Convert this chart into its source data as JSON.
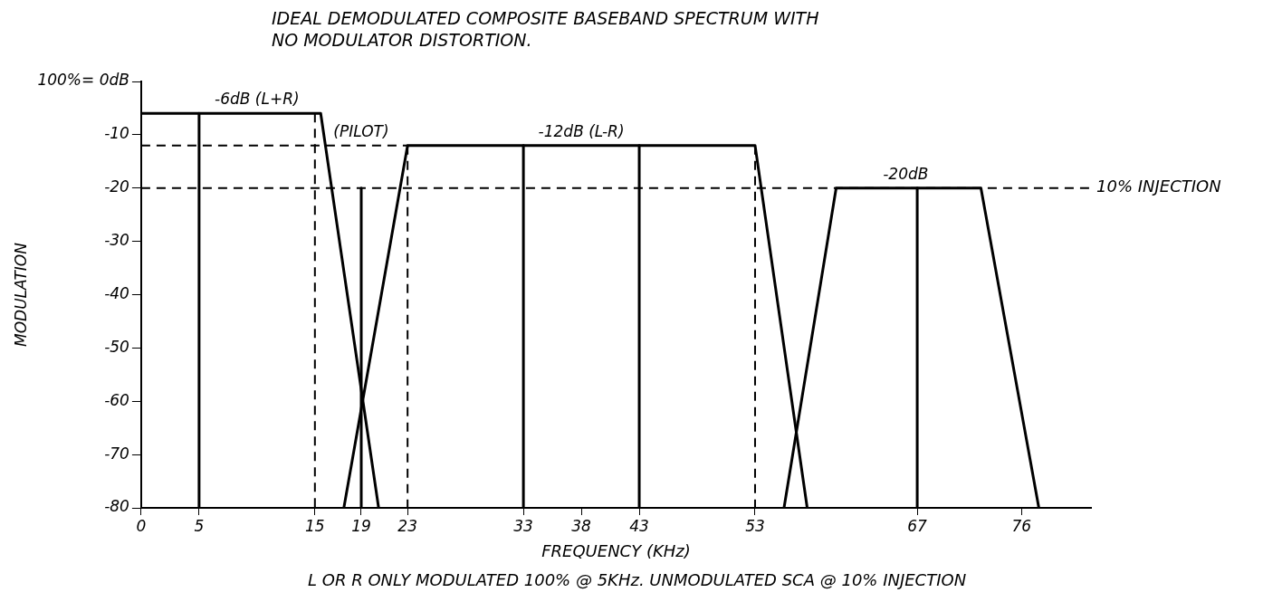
{
  "chart_data": {
    "type": "line",
    "title": "IDEAL DEMODULATED COMPOSITE BASEBAND SPECTRUM WITH NO MODULATOR DISTORTION.",
    "xlabel": "FREQUENCY (KHz)",
    "ylabel": "MODULATION",
    "xlim": [
      0,
      82
    ],
    "xticks": [
      0,
      5,
      15,
      19,
      23,
      33,
      38,
      43,
      53,
      67,
      76
    ],
    "ylim": [
      -80,
      0
    ],
    "yticks": [
      {
        "value": 0,
        "label": "100%= 0dB"
      },
      -10,
      -20,
      -30,
      -40,
      -50,
      -60,
      -70,
      -80
    ],
    "grid": false,
    "legend": false,
    "marker": "none",
    "series": [
      {
        "color": "#000000",
        "line_style": "solid",
        "x": [
          0,
          15.5,
          20.5
        ],
        "values": [
          -6,
          -6,
          -80
        ]
      },
      {
        "color": "#000000",
        "line_style": "solid",
        "x": [
          17.5,
          23,
          53,
          57.5
        ],
        "values": [
          -80,
          -12,
          -12,
          -80
        ]
      },
      {
        "color": "#000000",
        "line_style": "solid",
        "x": [
          55.5,
          60,
          72.5,
          77.5
        ],
        "values": [
          -80,
          -20,
          -20,
          -80
        ]
      },
      {
        "color": "#000000",
        "line_style": "solid",
        "x": [
          5,
          5
        ],
        "values": [
          -6,
          -80
        ]
      },
      {
        "color": "#000000",
        "line_style": "solid",
        "x": [
          19,
          19
        ],
        "values": [
          -20,
          -80
        ]
      },
      {
        "color": "#000000",
        "line_style": "solid",
        "x": [
          33,
          33
        ],
        "values": [
          -12,
          -80
        ]
      },
      {
        "color": "#000000",
        "line_style": "solid",
        "x": [
          43,
          43
        ],
        "values": [
          -12,
          -80
        ]
      },
      {
        "color": "#000000",
        "line_style": "solid",
        "x": [
          67,
          67
        ],
        "values": [
          -20,
          -80
        ]
      },
      {
        "color": "#000000",
        "line_style": "dashed",
        "x": [
          15,
          15
        ],
        "values": [
          -6,
          -80
        ]
      },
      {
        "color": "#000000",
        "line_style": "dashed",
        "x": [
          23,
          23
        ],
        "values": [
          -12,
          -80
        ]
      },
      {
        "color": "#000000",
        "line_style": "dashed",
        "x": [
          53,
          53
        ],
        "values": [
          -12,
          -80
        ]
      },
      {
        "color": "#000000",
        "line_style": "dashed",
        "x": [
          0,
          23
        ],
        "values": [
          -12,
          -12
        ]
      }
    ],
    "ref_lines": [
      {
        "axis": "y",
        "value": -20,
        "label": "10% INJECTION",
        "color": "#000000",
        "line_style": "dashed"
      }
    ],
    "annotations": [
      {
        "text": "-6dB (L+R)",
        "x": 10,
        "y": -6
      },
      {
        "text": "(PILOT)",
        "x": 19,
        "y": -12
      },
      {
        "text": "-12dB (L-R)",
        "x": 38,
        "y": -12
      },
      {
        "text": "-20dB",
        "x": 66,
        "y": -20
      },
      "L OR R ONLY MODULATED 100% @ 5KHz. UNMODULATED SCA @ 10% INJECTION"
    ]
  }
}
